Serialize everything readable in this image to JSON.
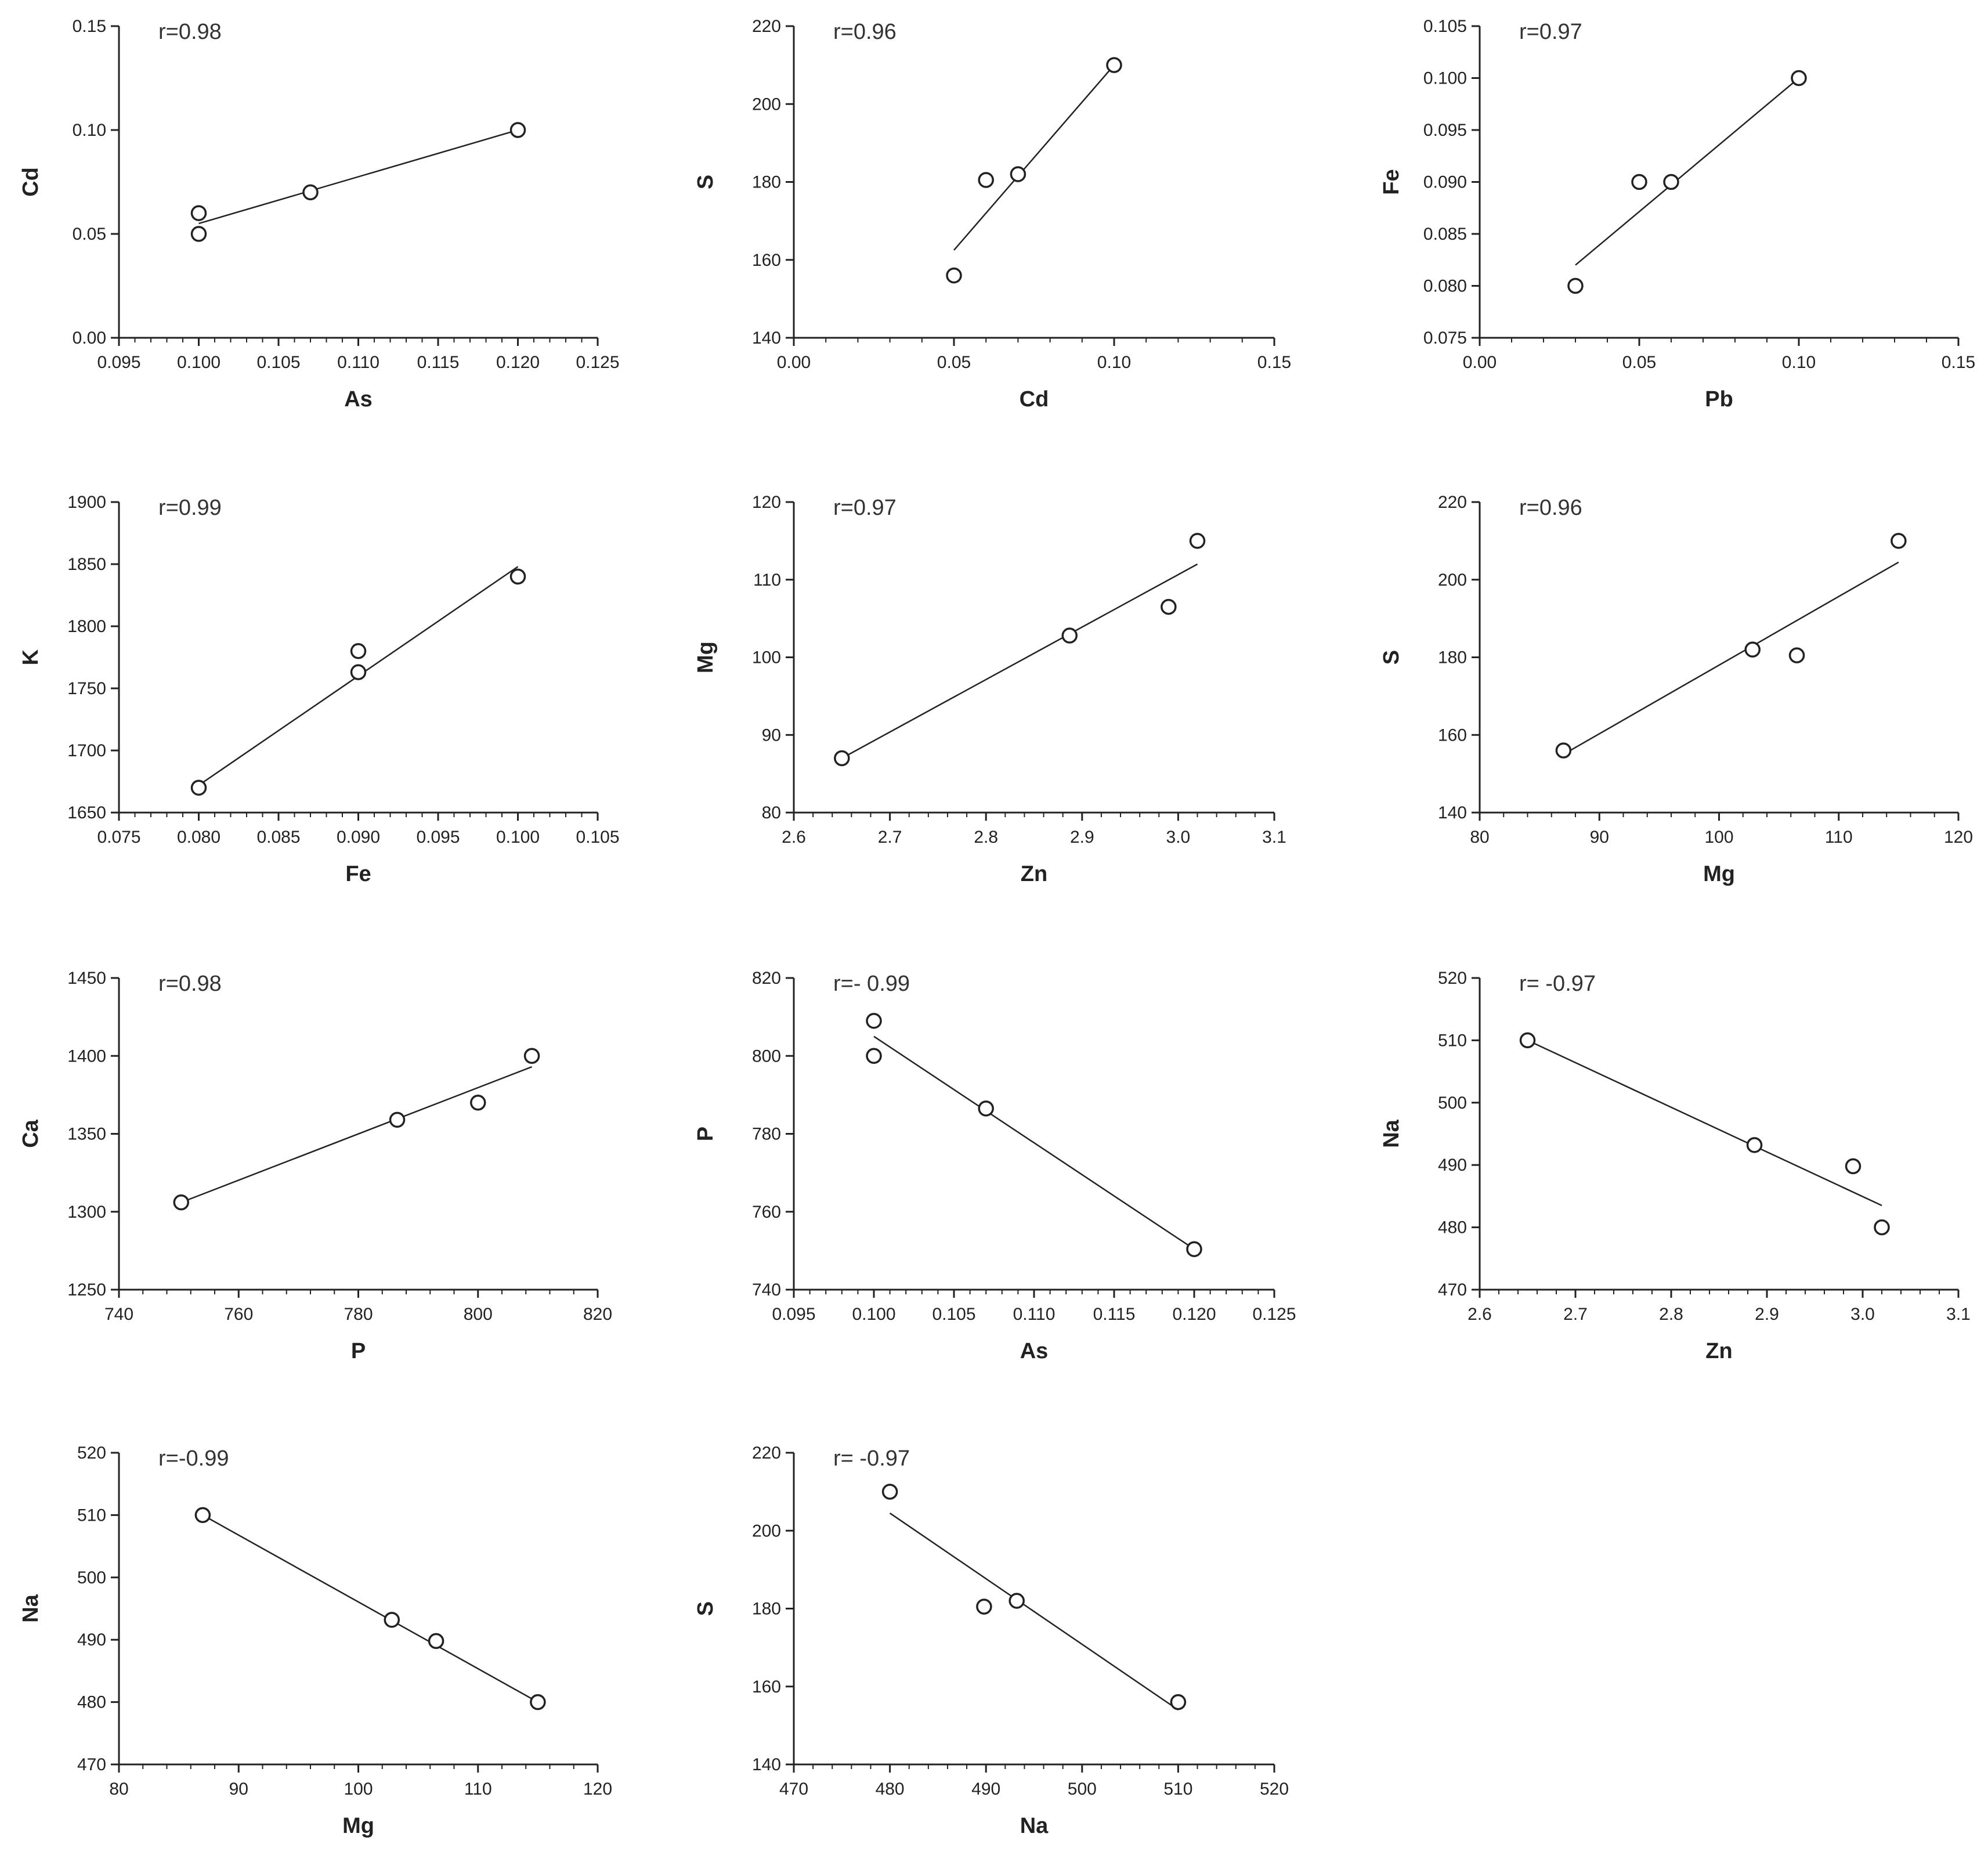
{
  "chart_data": [
    {
      "type": "scatter",
      "xlabel": "As",
      "ylabel": "Cd",
      "annotation": "r=0.98",
      "xlim": [
        0.095,
        0.125
      ],
      "ylim": [
        0,
        0.15
      ],
      "xticks": [
        "0.095",
        "0.100",
        "0.105",
        "0.110",
        "0.115",
        "0.120",
        "0.125"
      ],
      "yticks": [
        "0.00",
        "0.05",
        "0.10",
        "0.15"
      ],
      "points": [
        [
          0.1,
          0.06
        ],
        [
          0.1,
          0.05
        ],
        [
          0.107,
          0.07
        ],
        [
          0.12,
          0.1
        ]
      ],
      "fit": [
        [
          0.1,
          0.055
        ],
        [
          0.12,
          0.1
        ]
      ]
    },
    {
      "type": "scatter",
      "xlabel": "Cd",
      "ylabel": "S",
      "annotation": "r=0.96",
      "xlim": [
        0,
        0.15
      ],
      "ylim": [
        140,
        220
      ],
      "xticks": [
        "0.00",
        "0.05",
        "0.10",
        "0.15"
      ],
      "yticks": [
        "140",
        "160",
        "180",
        "200",
        "220"
      ],
      "points": [
        [
          0.05,
          156
        ],
        [
          0.06,
          180.5
        ],
        [
          0.07,
          182
        ],
        [
          0.1,
          210
        ]
      ],
      "fit": [
        [
          0.05,
          162.5
        ],
        [
          0.1,
          210
        ]
      ]
    },
    {
      "type": "scatter",
      "xlabel": "Pb",
      "ylabel": "Fe",
      "annotation": "r=0.97",
      "xlim": [
        0,
        0.15
      ],
      "ylim": [
        0.075,
        0.105
      ],
      "xticks": [
        "0.00",
        "0.05",
        "0.10",
        "0.15"
      ],
      "yticks": [
        "0.075",
        "0.080",
        "0.085",
        "0.090",
        "0.095",
        "0.100",
        "0.105"
      ],
      "points": [
        [
          0.03,
          0.08
        ],
        [
          0.05,
          0.09
        ],
        [
          0.06,
          0.09
        ],
        [
          0.1,
          0.1
        ]
      ],
      "fit": [
        [
          0.03,
          0.082
        ],
        [
          0.1,
          0.1
        ]
      ]
    },
    {
      "type": "scatter",
      "xlabel": "Fe",
      "ylabel": "K",
      "annotation": "r=0.99",
      "xlim": [
        0.075,
        0.105
      ],
      "ylim": [
        1650,
        1900
      ],
      "xticks": [
        "0.075",
        "0.080",
        "0.085",
        "0.090",
        "0.095",
        "0.100",
        "0.105"
      ],
      "yticks": [
        "1650",
        "1700",
        "1750",
        "1800",
        "1850",
        "1900"
      ],
      "points": [
        [
          0.08,
          1670
        ],
        [
          0.09,
          1780
        ],
        [
          0.09,
          1763
        ],
        [
          0.1,
          1840
        ]
      ],
      "fit": [
        [
          0.08,
          1672
        ],
        [
          0.1,
          1848
        ]
      ]
    },
    {
      "type": "scatter",
      "xlabel": "Zn",
      "ylabel": "Mg",
      "annotation": "r=0.97",
      "xlim": [
        2.6,
        3.1
      ],
      "ylim": [
        80,
        120
      ],
      "xticks": [
        "2.6",
        "2.7",
        "2.8",
        "2.9",
        "3.0",
        "3.1"
      ],
      "yticks": [
        "80",
        "90",
        "100",
        "110",
        "120"
      ],
      "points": [
        [
          2.65,
          87
        ],
        [
          2.887,
          102.8
        ],
        [
          2.99,
          106.5
        ],
        [
          3.02,
          115
        ]
      ],
      "fit": [
        [
          2.65,
          87
        ],
        [
          3.02,
          112
        ]
      ]
    },
    {
      "type": "scatter",
      "xlabel": "Mg",
      "ylabel": "S",
      "annotation": "r=0.96",
      "xlim": [
        80,
        120
      ],
      "ylim": [
        140,
        220
      ],
      "xticks": [
        "80",
        "90",
        "100",
        "110",
        "120"
      ],
      "yticks": [
        "140",
        "160",
        "180",
        "200",
        "220"
      ],
      "points": [
        [
          87,
          156
        ],
        [
          102.8,
          182
        ],
        [
          106.5,
          180.5
        ],
        [
          115,
          210
        ]
      ],
      "fit": [
        [
          87,
          155
        ],
        [
          115,
          204.5
        ]
      ]
    },
    {
      "type": "scatter",
      "xlabel": "P",
      "ylabel": "Ca",
      "annotation": "r=0.98",
      "xlim": [
        740,
        820
      ],
      "ylim": [
        1250,
        1450
      ],
      "xticks": [
        "740",
        "760",
        "780",
        "800",
        "820"
      ],
      "yticks": [
        "1250",
        "1300",
        "1350",
        "1400",
        "1450"
      ],
      "points": [
        [
          750.4,
          1306
        ],
        [
          786.5,
          1359
        ],
        [
          800,
          1370
        ],
        [
          809,
          1400
        ]
      ],
      "fit": [
        [
          750.4,
          1306
        ],
        [
          809,
          1393
        ]
      ]
    },
    {
      "type": "scatter",
      "xlabel": "As",
      "ylabel": "P",
      "annotation": "r=- 0.99",
      "xlim": [
        0.095,
        0.125
      ],
      "ylim": [
        740,
        820
      ],
      "xticks": [
        "0.095",
        "0.100",
        "0.105",
        "0.110",
        "0.115",
        "0.120",
        "0.125"
      ],
      "yticks": [
        "740",
        "760",
        "780",
        "800",
        "820"
      ],
      "points": [
        [
          0.1,
          809
        ],
        [
          0.1,
          800
        ],
        [
          0.107,
          786.5
        ],
        [
          0.12,
          750.4
        ]
      ],
      "fit": [
        [
          0.1,
          805
        ],
        [
          0.12,
          750.4
        ]
      ]
    },
    {
      "type": "scatter",
      "xlabel": "Zn",
      "ylabel": "Na",
      "annotation": "r= -0.97",
      "xlim": [
        2.6,
        3.1
      ],
      "ylim": [
        470,
        520
      ],
      "xticks": [
        "2.6",
        "2.7",
        "2.8",
        "2.9",
        "3.0",
        "3.1"
      ],
      "yticks": [
        "470",
        "480",
        "490",
        "500",
        "510",
        "520"
      ],
      "points": [
        [
          2.65,
          510
        ],
        [
          2.887,
          493.2
        ],
        [
          2.99,
          489.8
        ],
        [
          3.02,
          480
        ]
      ],
      "fit": [
        [
          2.65,
          510
        ],
        [
          3.02,
          483.5
        ]
      ]
    },
    {
      "type": "scatter",
      "xlabel": "Mg",
      "ylabel": "Na",
      "annotation": "r=-0.99",
      "xlim": [
        80,
        120
      ],
      "ylim": [
        470,
        520
      ],
      "xticks": [
        "80",
        "90",
        "100",
        "110",
        "120"
      ],
      "yticks": [
        "470",
        "480",
        "490",
        "500",
        "510",
        "520"
      ],
      "points": [
        [
          87,
          510
        ],
        [
          102.8,
          493.2
        ],
        [
          106.5,
          489.8
        ],
        [
          115,
          480
        ]
      ],
      "fit": [
        [
          87,
          510
        ],
        [
          115,
          480
        ]
      ]
    },
    {
      "type": "scatter",
      "xlabel": "Na",
      "ylabel": "S",
      "annotation": "r= -0.97",
      "xlim": [
        470,
        520
      ],
      "ylim": [
        140,
        220
      ],
      "xticks": [
        "470",
        "480",
        "490",
        "500",
        "510",
        "520"
      ],
      "yticks": [
        "140",
        "160",
        "180",
        "200",
        "220"
      ],
      "points": [
        [
          480,
          210
        ],
        [
          489.8,
          180.5
        ],
        [
          493.2,
          182
        ],
        [
          510,
          156
        ]
      ],
      "fit": [
        [
          480,
          204.5
        ],
        [
          510,
          154
        ]
      ]
    }
  ]
}
